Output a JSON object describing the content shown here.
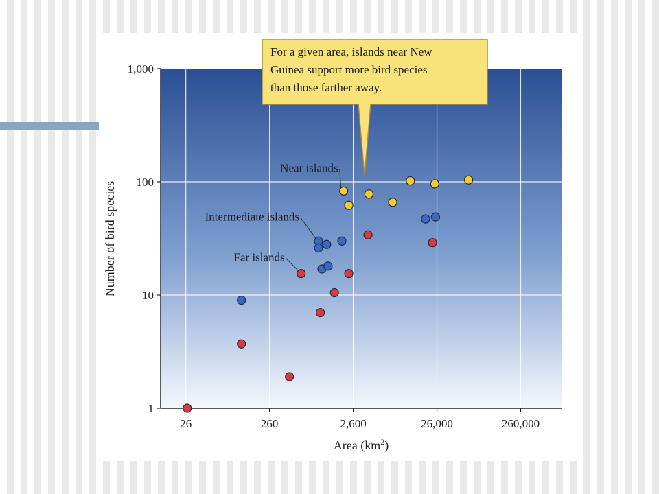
{
  "chart_data": {
    "type": "scatter",
    "title": "",
    "xlabel": "Area (km",
    "xlabel_sup": "2",
    "xlabel_close": ")",
    "ylabel": "Number of bird species",
    "xscale": "log",
    "yscale": "log",
    "xlim": [
      13,
      800000
    ],
    "ylim": [
      1,
      1000
    ],
    "x_ticks": [
      {
        "value": 26,
        "label": "26"
      },
      {
        "value": 260,
        "label": "260"
      },
      {
        "value": 2600,
        "label": "2,600"
      },
      {
        "value": 26000,
        "label": "26,000"
      },
      {
        "value": 260000,
        "label": "260,000"
      }
    ],
    "y_ticks": [
      {
        "value": 1,
        "label": "1"
      },
      {
        "value": 10,
        "label": "10"
      },
      {
        "value": 100,
        "label": "100"
      },
      {
        "value": 1000,
        "label": "1,000"
      }
    ],
    "grid": true,
    "callout": {
      "lines": [
        "For a given area, islands near New",
        "Guinea support more bird species",
        "than those farther away."
      ],
      "color": "#f7e37a"
    },
    "series": [
      {
        "name": "Near islands",
        "color": "#f2cc2b",
        "points": [
          {
            "x": 2000,
            "y": 83
          },
          {
            "x": 2300,
            "y": 62
          },
          {
            "x": 4000,
            "y": 78
          },
          {
            "x": 7700,
            "y": 66
          },
          {
            "x": 12500,
            "y": 102
          },
          {
            "x": 24500,
            "y": 96
          },
          {
            "x": 62000,
            "y": 104
          }
        ]
      },
      {
        "name": "Intermediate islands",
        "color": "#3d67bf",
        "points": [
          {
            "x": 120,
            "y": 9
          },
          {
            "x": 1000,
            "y": 30
          },
          {
            "x": 1000,
            "y": 26
          },
          {
            "x": 1100,
            "y": 17
          },
          {
            "x": 1250,
            "y": 28
          },
          {
            "x": 1300,
            "y": 18
          },
          {
            "x": 1900,
            "y": 30
          },
          {
            "x": 19000,
            "y": 47
          },
          {
            "x": 25000,
            "y": 49
          }
        ]
      },
      {
        "name": "Far islands",
        "color": "#d93a3a",
        "points": [
          {
            "x": 27,
            "y": 1
          },
          {
            "x": 120,
            "y": 3.7
          },
          {
            "x": 450,
            "y": 1.9
          },
          {
            "x": 620,
            "y": 15.5
          },
          {
            "x": 1050,
            "y": 7
          },
          {
            "x": 1550,
            "y": 10.5
          },
          {
            "x": 2300,
            "y": 15.5
          },
          {
            "x": 3900,
            "y": 34
          },
          {
            "x": 23000,
            "y": 29
          }
        ]
      }
    ]
  }
}
